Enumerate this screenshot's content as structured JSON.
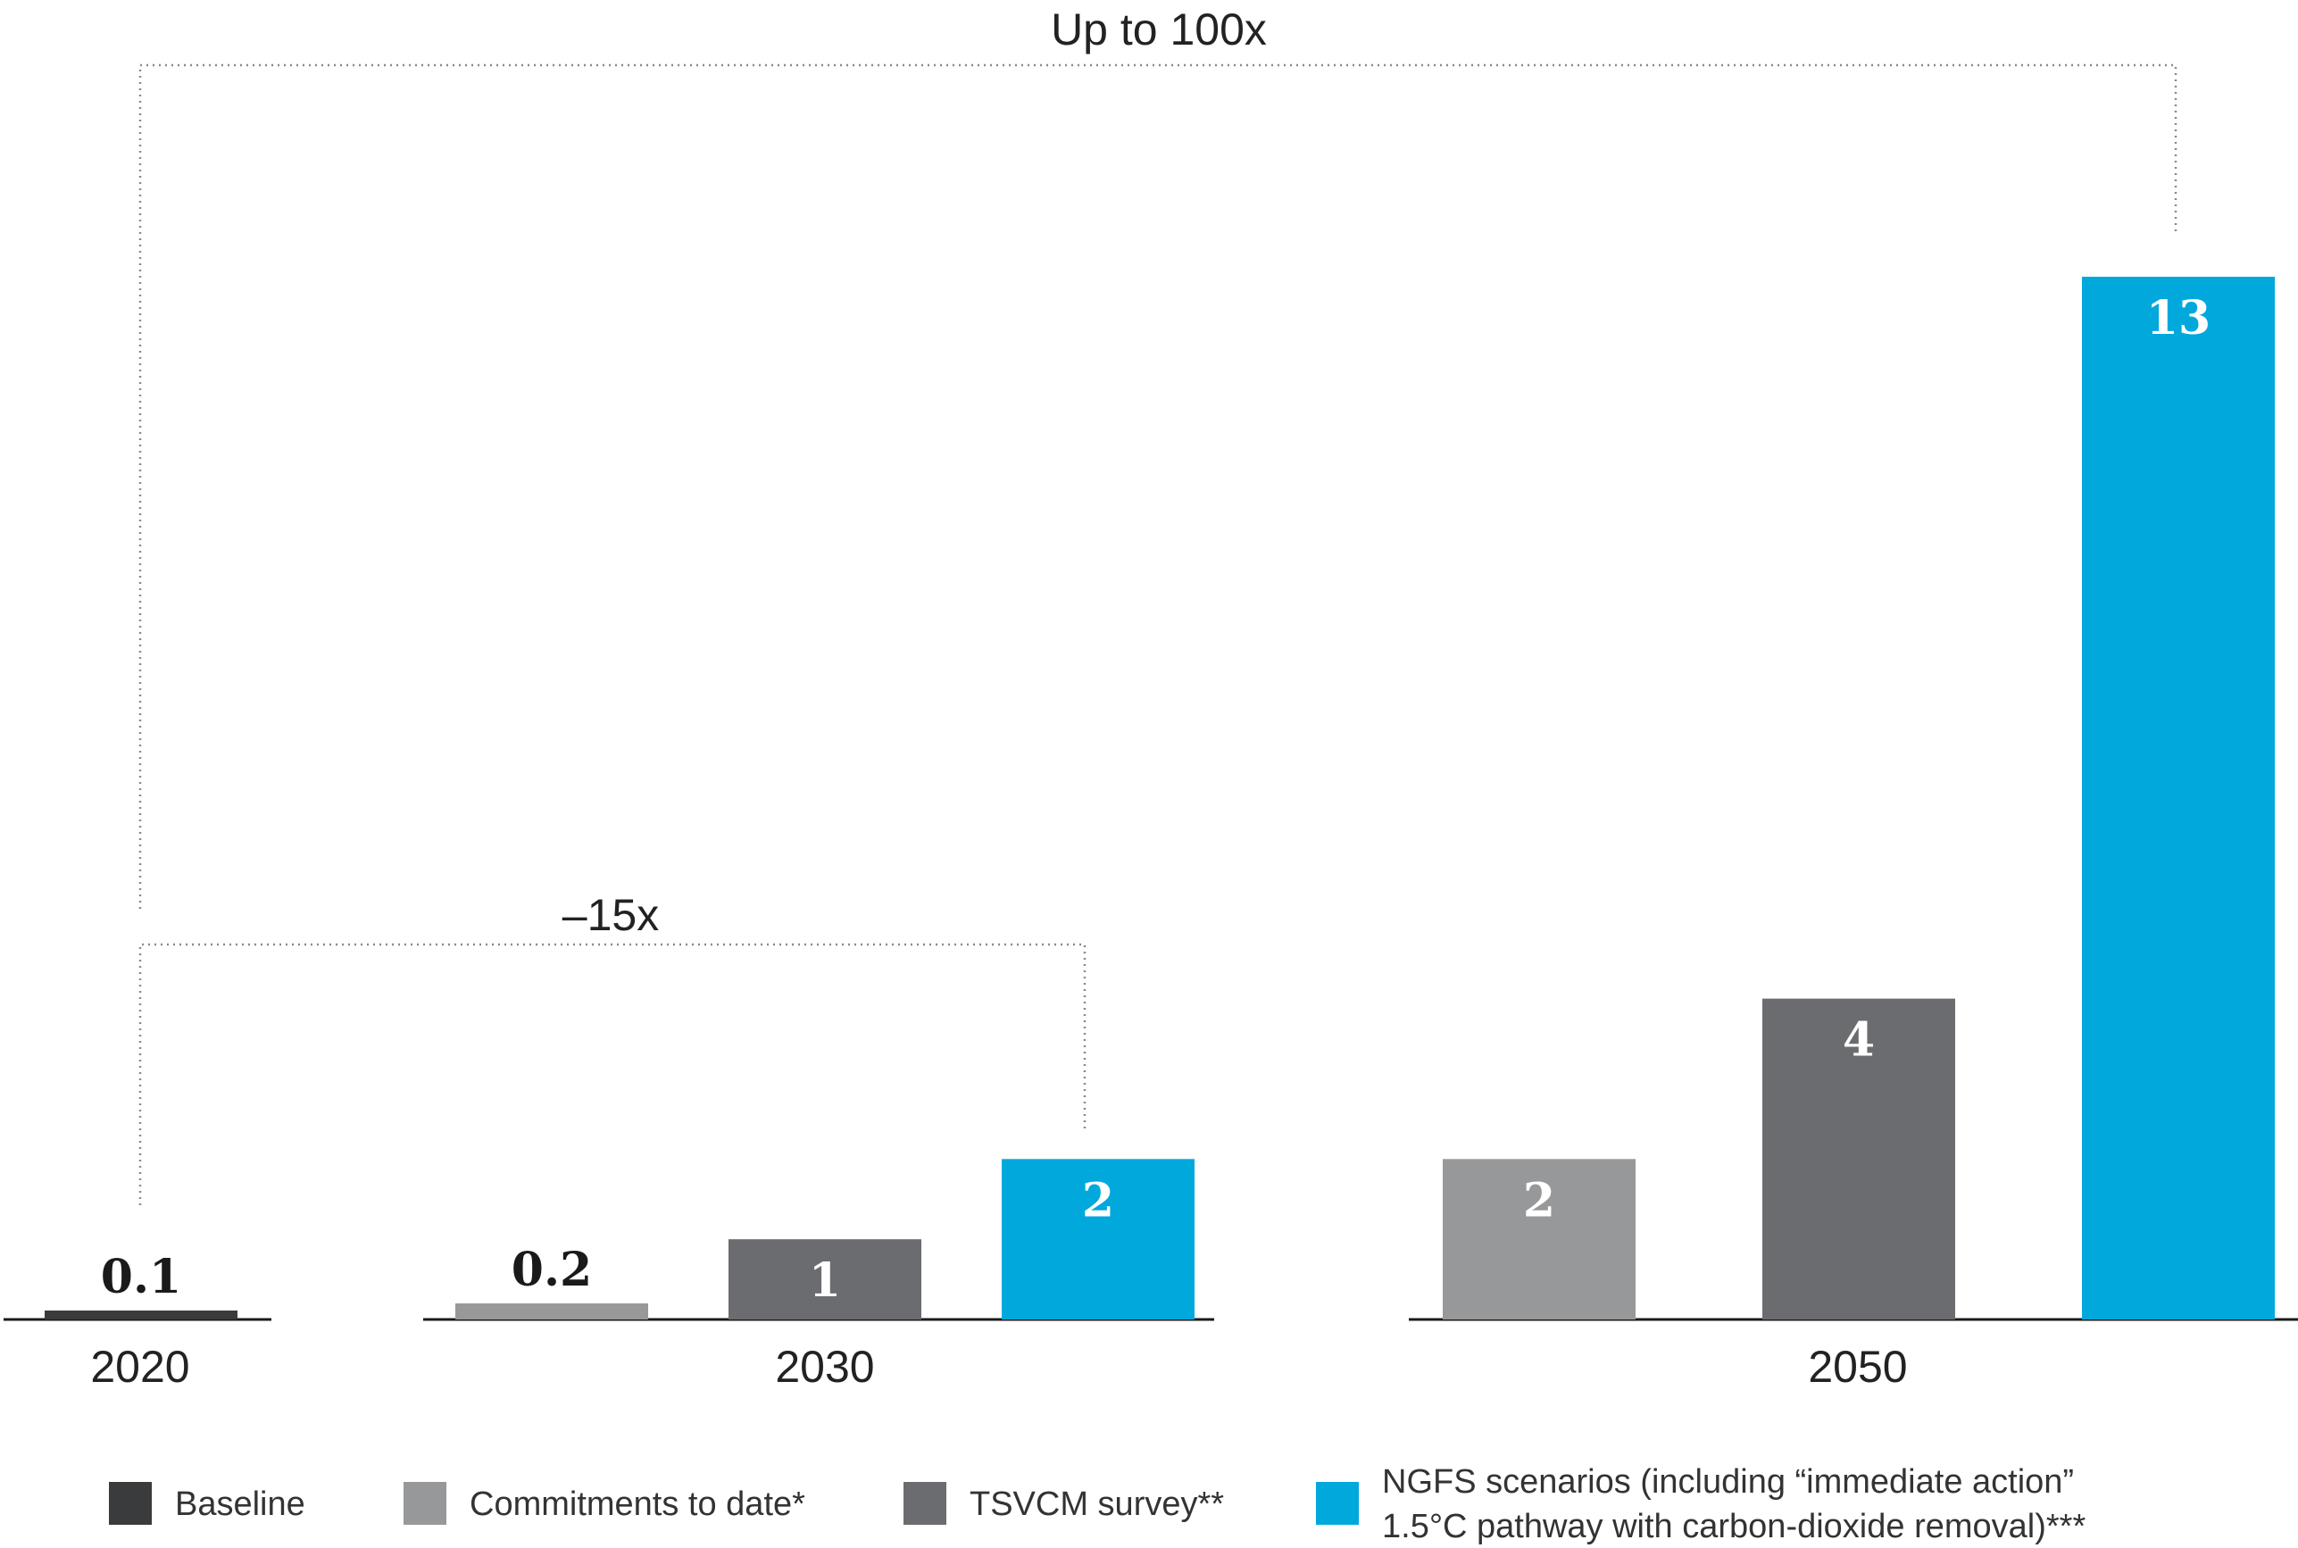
{
  "chart_data": {
    "type": "bar",
    "groups": [
      {
        "label": "2020",
        "bars": [
          {
            "series": "Baseline",
            "value": 0.1,
            "label": "0.1"
          }
        ]
      },
      {
        "label": "2030",
        "bars": [
          {
            "series": "Commitments to date*",
            "value": 0.2,
            "label": "0.2"
          },
          {
            "series": "TSVCM survey**",
            "value": 1,
            "label": "1"
          },
          {
            "series": "NGFS scenarios",
            "value": 2,
            "label": "2"
          }
        ]
      },
      {
        "label": "2050",
        "bars": [
          {
            "series": "Commitments to date*",
            "value": 2,
            "label": "2"
          },
          {
            "series": "TSVCM survey**",
            "value": 4,
            "label": "4"
          },
          {
            "series": "NGFS scenarios",
            "value": 13,
            "label": "13"
          }
        ]
      }
    ],
    "ylim": [
      0,
      13
    ],
    "annotations": [
      {
        "text": "Up to 100x",
        "from": "2020",
        "to": "2050"
      },
      {
        "text": "–15x",
        "from": "2020",
        "to": "2030"
      }
    ],
    "legend": {
      "placement": "bottom",
      "items": [
        {
          "label": "Baseline",
          "color": "#3a3b3c"
        },
        {
          "label": "Commitments to date*",
          "color": "#97989a"
        },
        {
          "label": "TSVCM survey**",
          "color": "#6b6c6f"
        },
        {
          "label": "NGFS scenarios (including “immediate action”",
          "label2": "1.5°C pathway with carbon-dioxide removal)***",
          "color": "#00a8dc"
        }
      ]
    },
    "colors": {
      "Baseline": "#3a3b3c",
      "Commitments to date*": "#97989a",
      "TSVCM survey**": "#6b6c6f",
      "NGFS scenarios": "#00a8dc"
    }
  }
}
